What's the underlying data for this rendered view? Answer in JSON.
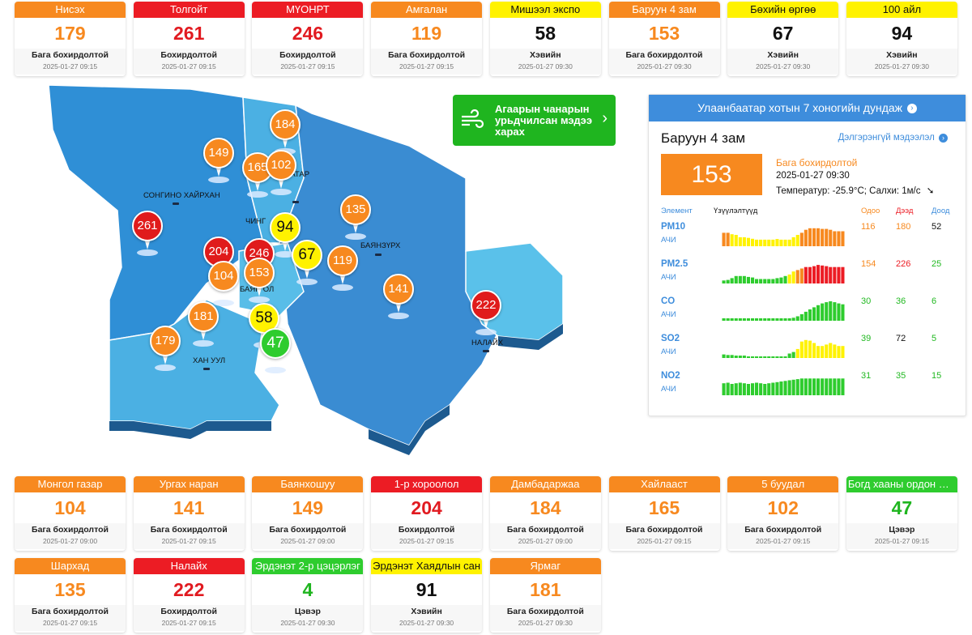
{
  "colors": {
    "orange": "#f7891f",
    "red": "#ec1c24",
    "yellow": "#fff200",
    "green": "#2ecc2e",
    "blue": "#3e8ddc"
  },
  "top_cards": [
    {
      "name": "Нисэх",
      "value": "179",
      "status": "Бага бохирдолтой",
      "time": "2025-01-27 09:15",
      "level": "orange"
    },
    {
      "name": "Толгойт",
      "value": "261",
      "status": "Бохирдолтой",
      "time": "2025-01-27 09:15",
      "level": "red"
    },
    {
      "name": "МҮОНРТ",
      "value": "246",
      "status": "Бохирдолтой",
      "time": "2025-01-27 09:15",
      "level": "red"
    },
    {
      "name": "Амгалан",
      "value": "119",
      "status": "Бага бохирдолтой",
      "time": "2025-01-27 09:15",
      "level": "orange"
    },
    {
      "name": "Мишээл экспо",
      "value": "58",
      "status": "Хэвийн",
      "time": "2025-01-27 09:30",
      "level": "yellow"
    },
    {
      "name": "Баруун 4 зам",
      "value": "153",
      "status": "Бага бохирдолтой",
      "time": "2025-01-27 09:30",
      "level": "orange"
    },
    {
      "name": "Бөхийн өргөө",
      "value": "67",
      "status": "Хэвийн",
      "time": "2025-01-27 09:30",
      "level": "yellow"
    },
    {
      "name": "100 айл",
      "value": "94",
      "status": "Хэвийн",
      "time": "2025-01-27 09:30",
      "level": "yellow"
    }
  ],
  "bottom_cards": [
    {
      "name": "Монгол газар",
      "value": "104",
      "status": "Бага бохирдолтой",
      "time": "2025-01-27 09:00",
      "level": "orange"
    },
    {
      "name": "Ургах наран",
      "value": "141",
      "status": "Бага бохирдолтой",
      "time": "2025-01-27 09:15",
      "level": "orange"
    },
    {
      "name": "Баянхошуу",
      "value": "149",
      "status": "Бага бохирдолтой",
      "time": "2025-01-27 09:00",
      "level": "orange"
    },
    {
      "name": "1-р хороолол",
      "value": "204",
      "status": "Бохирдолтой",
      "time": "2025-01-27 09:15",
      "level": "red"
    },
    {
      "name": "Дамбадаржаа",
      "value": "184",
      "status": "Бага бохирдолтой",
      "time": "2025-01-27 09:00",
      "level": "orange"
    },
    {
      "name": "Хайлааст",
      "value": "165",
      "status": "Бага бохирдолтой",
      "time": "2025-01-27 09:15",
      "level": "orange"
    },
    {
      "name": "5 буудал",
      "value": "102",
      "status": "Бага бохирдолтой",
      "time": "2025-01-27 09:15",
      "level": "orange"
    },
    {
      "name": "Богд хааны ордон музей",
      "value": "47",
      "status": "Цэвэр",
      "time": "2025-01-27 09:15",
      "level": "green"
    },
    {
      "name": "Шархад",
      "value": "135",
      "status": "Бага бохирдолтой",
      "time": "2025-01-27 09:15",
      "level": "orange"
    },
    {
      "name": "Налайх",
      "value": "222",
      "status": "Бохирдолтой",
      "time": "2025-01-27 09:15",
      "level": "red"
    },
    {
      "name": "Эрдэнэт 2-р цэцэрлэг",
      "value": "4",
      "status": "Цэвэр",
      "time": "2025-01-27 09:30",
      "level": "green"
    },
    {
      "name": "Эрдэнэт Хаядлын сан",
      "value": "91",
      "status": "Хэвийн",
      "time": "2025-01-27 09:30",
      "level": "yellow"
    },
    {
      "name": "Ярмаг",
      "value": "181",
      "status": "Бага бохирдолтой",
      "time": "2025-01-27 09:30",
      "level": "orange"
    }
  ],
  "map": {
    "district_labels": [
      "СОНГИНО ХАЙРХАН",
      "БАЯНЗҮРХ",
      "ХАН УУЛ",
      "НАЛАЙХ",
      "ЧИНГ",
      "БАЯН ОЛ",
      "ААТАР"
    ],
    "markers": [
      {
        "value": "184",
        "level": "orange"
      },
      {
        "value": "149",
        "level": "orange"
      },
      {
        "value": "165",
        "level": "orange"
      },
      {
        "value": "102",
        "level": "orange"
      },
      {
        "value": "135",
        "level": "orange"
      },
      {
        "value": "94",
        "level": "yellow"
      },
      {
        "value": "261",
        "level": "red"
      },
      {
        "value": "204",
        "level": "red"
      },
      {
        "value": "246",
        "level": "red"
      },
      {
        "value": "67",
        "level": "yellow"
      },
      {
        "value": "119",
        "level": "orange"
      },
      {
        "value": "153",
        "level": "orange"
      },
      {
        "value": "104",
        "level": "orange"
      },
      {
        "value": "141",
        "level": "orange"
      },
      {
        "value": "222",
        "level": "red"
      },
      {
        "value": "181",
        "level": "orange"
      },
      {
        "value": "58",
        "level": "yellow"
      },
      {
        "value": "179",
        "level": "orange"
      },
      {
        "value": "47",
        "level": "green"
      }
    ]
  },
  "forecast_button": {
    "label": "Агаарын чанарын урьдчилсан мэдээ харах",
    "icon": "wind-icon"
  },
  "panel": {
    "header": "Улаанбаатар хотын 7 хоногийн дундаж",
    "station": "Баруун 4 зам",
    "details_link": "Дэлгэрэнгүй мэдээлэл",
    "aqi": "153",
    "status": "Бага бохирдолтой",
    "time": "2025-01-27 09:30",
    "weather": "Температур: -25.9°C; Салхи: 1м/с",
    "col_element": "Элемент",
    "col_indicators": "Үзүүлэлтүүд",
    "col_now": "Одоо",
    "col_max": "Дээд",
    "col_min": "Доод",
    "elements": [
      {
        "name": "PM10",
        "sub": "АЧИ",
        "now": "116",
        "max": "180",
        "min": "52",
        "now_level": "orange",
        "max_level": "orange",
        "min_level": "black",
        "bars": [
          45,
          45,
          40,
          38,
          30,
          30,
          28,
          25,
          22,
          22,
          22,
          22,
          22,
          24,
          22,
          22,
          22,
          30,
          38,
          45,
          55,
          60,
          60,
          60,
          58,
          58,
          55,
          50,
          50,
          50
        ]
      },
      {
        "name": "PM2.5",
        "sub": "АЧИ",
        "now": "154",
        "max": "226",
        "min": "25",
        "now_level": "orange",
        "max_level": "red",
        "min_level": "green",
        "bars": [
          10,
          12,
          18,
          25,
          25,
          25,
          22,
          20,
          15,
          15,
          15,
          15,
          15,
          18,
          20,
          25,
          30,
          40,
          45,
          50,
          55,
          55,
          58,
          62,
          60,
          58,
          55,
          55,
          55,
          55
        ]
      },
      {
        "name": "CO",
        "sub": "АЧИ",
        "now": "30",
        "max": "36",
        "min": "6",
        "now_level": "green",
        "max_level": "green",
        "min_level": "green",
        "bars": [
          8,
          8,
          8,
          8,
          8,
          8,
          8,
          8,
          8,
          8,
          8,
          8,
          8,
          8,
          8,
          8,
          8,
          10,
          15,
          22,
          30,
          38,
          45,
          52,
          58,
          62,
          65,
          62,
          58,
          55
        ]
      },
      {
        "name": "SO2",
        "sub": "АЧИ",
        "now": "39",
        "max": "72",
        "min": "5",
        "now_level": "green",
        "max_level": "black",
        "min_level": "green",
        "bars": [
          12,
          10,
          10,
          8,
          8,
          8,
          5,
          3,
          3,
          3,
          3,
          3,
          3,
          3,
          3,
          3,
          15,
          20,
          30,
          55,
          60,
          58,
          50,
          40,
          40,
          45,
          50,
          45,
          40,
          40
        ]
      },
      {
        "name": "NO2",
        "sub": "АЧИ",
        "now": "31",
        "max": "35",
        "min": "15",
        "now_level": "green",
        "max_level": "green",
        "min_level": "green",
        "bars": [
          40,
          42,
          38,
          40,
          42,
          40,
          38,
          40,
          42,
          40,
          38,
          40,
          42,
          44,
          46,
          48,
          50,
          52,
          54,
          56,
          56,
          56,
          56,
          56,
          56,
          56,
          56,
          56,
          56,
          56
        ]
      }
    ]
  }
}
